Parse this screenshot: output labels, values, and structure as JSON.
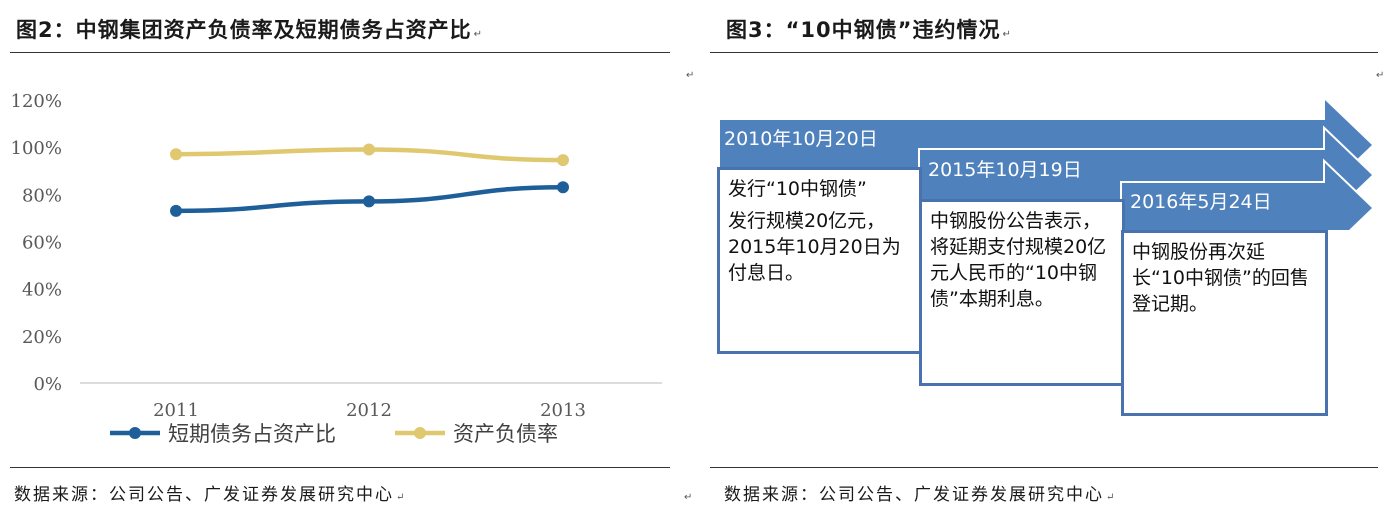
{
  "left_panel": {
    "title": "图2：中钢集团资产负债率及短期债务占资产比",
    "source": "数据来源：公司公告、广发证券发展研究中心"
  },
  "right_panel": {
    "title": "图3：“10中钢债”违约情况",
    "source": "数据来源：公司公告、广发证券发展研究中心",
    "timeline": [
      {
        "date": "2010年10月20日",
        "lines": [
          "发行“10中钢债”",
          "发行规模20亿元，2015年10月20日为付息日。"
        ]
      },
      {
        "date": "2015年10月19日",
        "lines": [
          "中钢股份公告表示，将延期支付规模20亿元人民币的“10中钢债”本期利息。"
        ]
      },
      {
        "date": "2016年5月24日",
        "lines": [
          "中钢股份再次延长“10中钢债”的回售登记期。"
        ]
      }
    ],
    "colors": {
      "arrow": "#4f81bd",
      "box_border": "#4a72ae"
    }
  },
  "para_mark": "↵",
  "chart_data": {
    "type": "line",
    "categories": [
      "2011",
      "2012",
      "2013"
    ],
    "series": [
      {
        "name": "短期债务占资产比",
        "values": [
          73,
          77,
          83
        ],
        "color": "#1f5f99"
      },
      {
        "name": "资产负债率",
        "values": [
          97,
          99,
          94.5
        ],
        "color": "#e0c870"
      }
    ],
    "title": "",
    "xlabel": "",
    "ylabel": "",
    "ylim": [
      0,
      120
    ],
    "yticks": [
      "0%",
      "20%",
      "40%",
      "60%",
      "80%",
      "100%",
      "120%"
    ],
    "grid": false,
    "legend_position": "bottom"
  }
}
